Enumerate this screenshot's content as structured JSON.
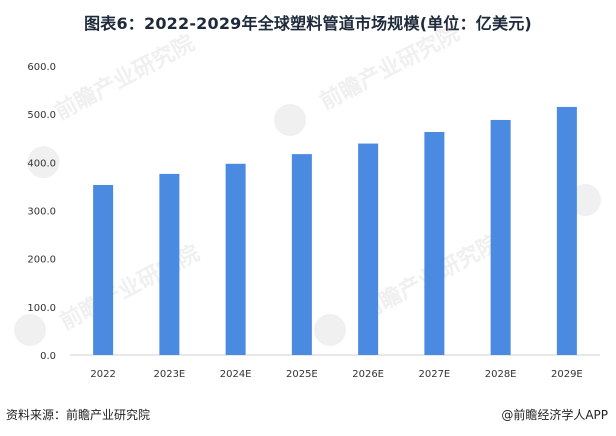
{
  "chart_data": {
    "type": "bar",
    "title": "图表6：2022-2029年全球塑料管道市场规模(单位：亿美元)",
    "categories": [
      "2022",
      "2023E",
      "2024E",
      "2025E",
      "2026E",
      "2027E",
      "2028E",
      "2029E"
    ],
    "values": [
      353,
      376,
      397,
      417,
      439,
      463,
      488,
      515
    ],
    "ylim": [
      0,
      600
    ],
    "yticks": [
      "0.0",
      "100.0",
      "200.0",
      "300.0",
      "400.0",
      "500.0",
      "600.0"
    ],
    "xlabel": "",
    "ylabel": "",
    "bar_color": "#4a8ae0",
    "grid": false
  },
  "footer": {
    "source": "资料来源：前瞻产业研究院",
    "brand": "@前瞻经济学人APP"
  },
  "watermark": {
    "text": "前瞻产业研究院"
  }
}
